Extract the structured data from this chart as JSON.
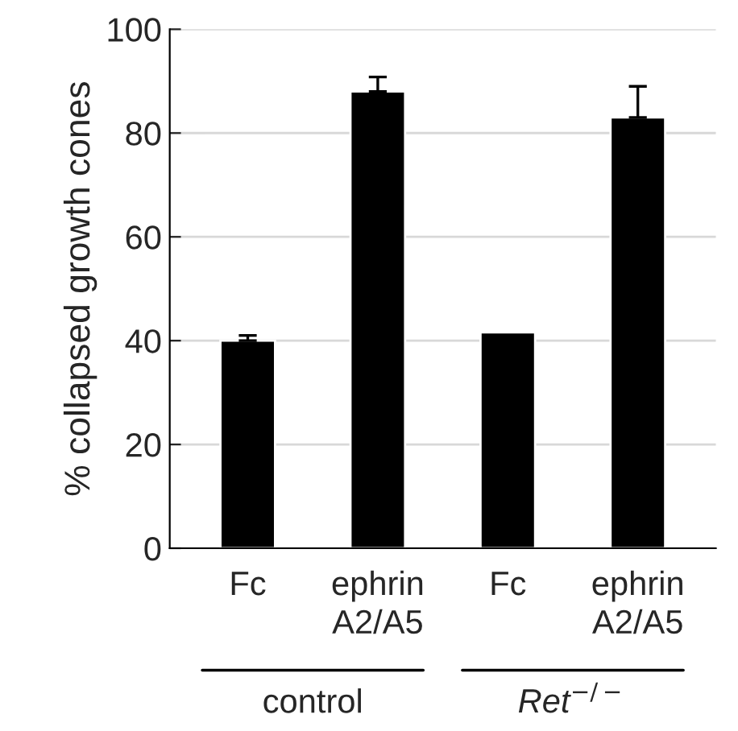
{
  "chart_data": {
    "type": "bar",
    "ylabel": "% collapsed growth cones",
    "categories": [
      "Fc",
      "ephrin\nA2/A5",
      "Fc",
      "ephrin\nA2/A5"
    ],
    "series": [
      {
        "color": "#000000",
        "values": [
          40,
          88,
          41.6,
          83
        ],
        "errors": [
          [
            40,
            41
          ],
          [
            88,
            90.8
          ],
          null,
          [
            83,
            89
          ]
        ]
      }
    ],
    "ylim": [
      0,
      100
    ],
    "yticks": [
      0,
      20,
      40,
      60,
      80,
      100
    ],
    "grid": "y",
    "annotations": [
      "control",
      "Ret$^{−/−}$"
    ]
  }
}
